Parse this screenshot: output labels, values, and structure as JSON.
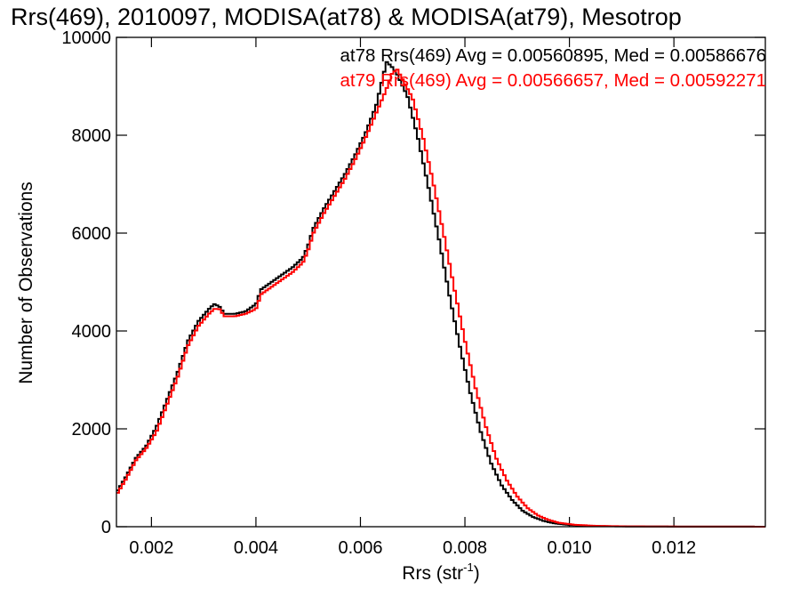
{
  "chart_data": {
    "type": "histogram",
    "title": "Rrs(469), 2010097, MODISA(at78) & MODISA(at79), Mesotrop",
    "xlabel_base": "Rrs (str",
    "xlabel_exp": "-1",
    "xlabel_close": ")",
    "ylabel": "Number of Observations",
    "xlim": [
      0.00133,
      0.01375
    ],
    "ylim": [
      0,
      10000
    ],
    "xticks": [
      0.002,
      0.004,
      0.006,
      0.008,
      0.01,
      0.012
    ],
    "xtick_labels": [
      "0.002",
      "0.004",
      "0.006",
      "0.008",
      "0.010",
      "0.012"
    ],
    "yticks": [
      0,
      2000,
      4000,
      6000,
      8000,
      10000
    ],
    "ytick_labels": [
      "0",
      "2000",
      "4000",
      "6000",
      "8000",
      "10000"
    ],
    "grid": false,
    "legend_position": "top-right",
    "series": [
      {
        "name": "at78",
        "color": "#000000",
        "annotation": "at78 Rrs(469) Avg = 0.00560895, Med = 0.00586676",
        "points": [
          [
            0.00133,
            700
          ],
          [
            0.0015,
            1000
          ],
          [
            0.0017,
            1400
          ],
          [
            0.0019,
            1650
          ],
          [
            0.0021,
            2050
          ],
          [
            0.0023,
            2600
          ],
          [
            0.0025,
            3150
          ],
          [
            0.0027,
            3800
          ],
          [
            0.0029,
            4200
          ],
          [
            0.0031,
            4450
          ],
          [
            0.0032,
            4550
          ],
          [
            0.0033,
            4500
          ],
          [
            0.0034,
            4350
          ],
          [
            0.0036,
            4350
          ],
          [
            0.0038,
            4400
          ],
          [
            0.004,
            4550
          ],
          [
            0.0041,
            4850
          ],
          [
            0.0043,
            5000
          ],
          [
            0.0045,
            5150
          ],
          [
            0.0047,
            5300
          ],
          [
            0.0049,
            5500
          ],
          [
            0.005,
            5750
          ],
          [
            0.0051,
            6100
          ],
          [
            0.0053,
            6500
          ],
          [
            0.0055,
            6850
          ],
          [
            0.0057,
            7200
          ],
          [
            0.0059,
            7600
          ],
          [
            0.0061,
            8050
          ],
          [
            0.0063,
            8600
          ],
          [
            0.0064,
            9050
          ],
          [
            0.0065,
            9500
          ],
          [
            0.0066,
            9400
          ],
          [
            0.0067,
            9250
          ],
          [
            0.0069,
            8800
          ],
          [
            0.0071,
            7950
          ],
          [
            0.0073,
            6950
          ],
          [
            0.0075,
            5900
          ],
          [
            0.0077,
            4750
          ],
          [
            0.0079,
            3700
          ],
          [
            0.0081,
            2750
          ],
          [
            0.0083,
            1950
          ],
          [
            0.0085,
            1300
          ],
          [
            0.0087,
            850
          ],
          [
            0.0089,
            550
          ],
          [
            0.0091,
            330
          ],
          [
            0.0093,
            200
          ],
          [
            0.0095,
            120
          ],
          [
            0.0097,
            70
          ],
          [
            0.01,
            35
          ],
          [
            0.0104,
            15
          ],
          [
            0.011,
            6
          ],
          [
            0.012,
            3
          ],
          [
            0.0137,
            1
          ]
        ]
      },
      {
        "name": "at79",
        "color": "#ff0000",
        "annotation": "at79 Rrs(469) Avg = 0.00566657, Med = 0.00592271",
        "points": [
          [
            0.00133,
            650
          ],
          [
            0.0015,
            950
          ],
          [
            0.0017,
            1350
          ],
          [
            0.0019,
            1600
          ],
          [
            0.0021,
            1950
          ],
          [
            0.0023,
            2500
          ],
          [
            0.0025,
            3050
          ],
          [
            0.0027,
            3700
          ],
          [
            0.0029,
            4100
          ],
          [
            0.0031,
            4350
          ],
          [
            0.0032,
            4450
          ],
          [
            0.0033,
            4450
          ],
          [
            0.0034,
            4300
          ],
          [
            0.0036,
            4300
          ],
          [
            0.0038,
            4350
          ],
          [
            0.004,
            4450
          ],
          [
            0.0041,
            4750
          ],
          [
            0.0043,
            4900
          ],
          [
            0.0045,
            5050
          ],
          [
            0.0047,
            5200
          ],
          [
            0.0049,
            5400
          ],
          [
            0.005,
            5650
          ],
          [
            0.0051,
            6000
          ],
          [
            0.0053,
            6400
          ],
          [
            0.0055,
            6750
          ],
          [
            0.0057,
            7100
          ],
          [
            0.0059,
            7500
          ],
          [
            0.0061,
            7950
          ],
          [
            0.0063,
            8450
          ],
          [
            0.0065,
            8950
          ],
          [
            0.0066,
            9250
          ],
          [
            0.0067,
            9350
          ],
          [
            0.0068,
            9150
          ],
          [
            0.007,
            8750
          ],
          [
            0.0072,
            7950
          ],
          [
            0.0074,
            7000
          ],
          [
            0.0076,
            5950
          ],
          [
            0.0078,
            4850
          ],
          [
            0.008,
            3800
          ],
          [
            0.0082,
            2850
          ],
          [
            0.0084,
            2050
          ],
          [
            0.0086,
            1400
          ],
          [
            0.0088,
            950
          ],
          [
            0.009,
            620
          ],
          [
            0.0092,
            380
          ],
          [
            0.0094,
            230
          ],
          [
            0.0096,
            140
          ],
          [
            0.0098,
            80
          ],
          [
            0.0101,
            40
          ],
          [
            0.0105,
            18
          ],
          [
            0.0111,
            7
          ],
          [
            0.0121,
            3
          ],
          [
            0.0137,
            1
          ]
        ]
      }
    ]
  }
}
